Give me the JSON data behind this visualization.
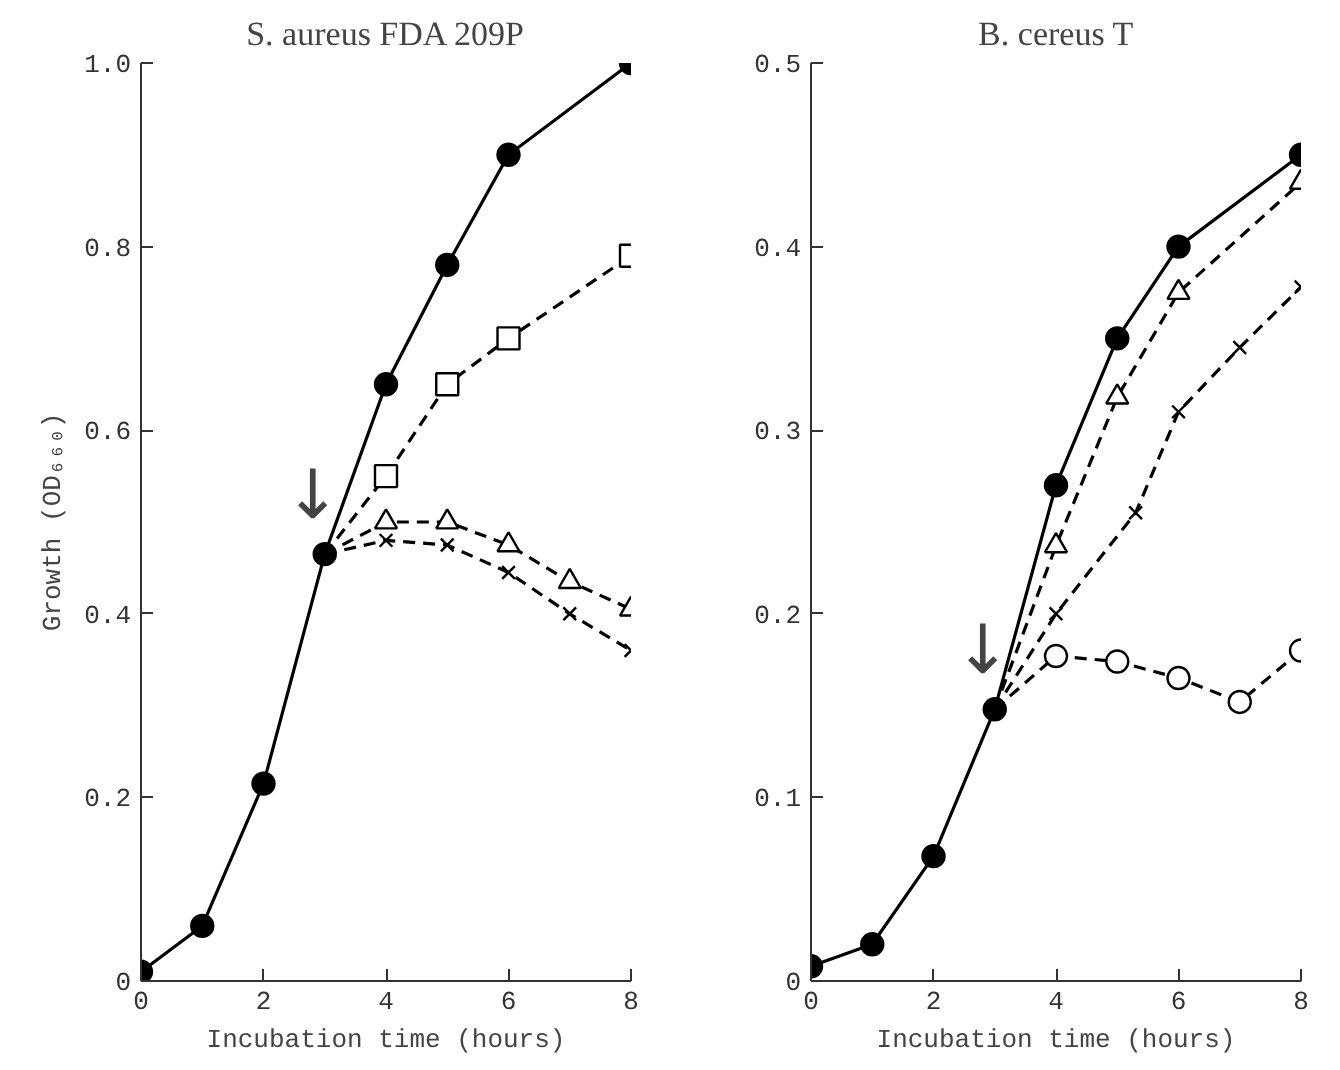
{
  "chart_data": [
    {
      "type": "line",
      "title": "S. aureus FDA 209P",
      "xlabel": "Incubation time (hours)",
      "ylabel": "Growth (OD₆₆₀)",
      "xlim": [
        0,
        8
      ],
      "ylim": [
        0,
        1.0
      ],
      "xticks": [
        0,
        2,
        4,
        6,
        8
      ],
      "yticks": [
        0,
        0.2,
        0.4,
        0.6,
        0.8,
        {
          "value": 1.0,
          "label": "1.0"
        }
      ],
      "annotations": [
        "↓"
      ],
      "series": [
        {
          "color": "#000000",
          "marker": "circle",
          "line_style": "solid",
          "x": [
            0,
            1,
            2,
            3,
            4,
            5,
            6,
            8
          ],
          "values": [
            0.01,
            0.06,
            0.215,
            0.465,
            0.65,
            0.78,
            0.9,
            1.0
          ]
        },
        {
          "color": "#000000",
          "marker": "square",
          "line_style": "dashed",
          "x": [
            3,
            4,
            5,
            6,
            8
          ],
          "values": [
            0.465,
            0.55,
            0.65,
            0.7,
            0.79
          ]
        },
        {
          "color": "#000000",
          "marker": "triangle",
          "line_style": "dashed",
          "x": [
            3,
            4,
            5,
            6,
            7,
            8
          ],
          "values": [
            0.465,
            0.5,
            0.5,
            0.475,
            0.435,
            0.405
          ]
        },
        {
          "color": "#000000",
          "marker": "cross",
          "line_style": "dashed",
          "x": [
            3,
            4,
            5,
            6,
            7,
            8
          ],
          "values": [
            0.465,
            0.48,
            0.475,
            0.445,
            0.4,
            0.36
          ]
        }
      ]
    },
    {
      "type": "line",
      "title": "B. cereus T",
      "xlabel": "Incubation time (hours)",
      "xlim": [
        0,
        8
      ],
      "ylim": [
        0,
        0.5
      ],
      "xticks": [
        0,
        2,
        4,
        6,
        8
      ],
      "yticks": [
        0,
        0.1,
        0.2,
        0.3,
        0.4,
        0.5
      ],
      "annotations": [
        "↓"
      ],
      "series": [
        {
          "color": "#000000",
          "marker": "circle",
          "line_style": "solid",
          "x": [
            0,
            1,
            2,
            3,
            4,
            5,
            6,
            8
          ],
          "values": [
            0.008,
            0.02,
            0.068,
            0.148,
            0.27,
            0.35,
            0.4,
            0.45
          ]
        },
        {
          "color": "#000000",
          "marker": "triangle",
          "line_style": "dashed",
          "x": [
            3,
            4,
            5,
            6,
            8
          ],
          "values": [
            0.148,
            0.237,
            0.318,
            0.375,
            0.435
          ]
        },
        {
          "color": "#000000",
          "marker": "cross",
          "line_style": "dashed",
          "x": [
            3,
            4,
            5.3,
            6,
            7,
            8
          ],
          "values": [
            0.148,
            0.2,
            0.255,
            0.31,
            0.345,
            0.378
          ]
        },
        {
          "color": "#000000",
          "marker": "circle",
          "line_style": "dashed",
          "x": [
            3,
            4,
            5,
            6,
            7,
            8
          ],
          "values": [
            0.148,
            0.177,
            0.174,
            0.165,
            0.152,
            0.18
          ]
        }
      ]
    }
  ]
}
